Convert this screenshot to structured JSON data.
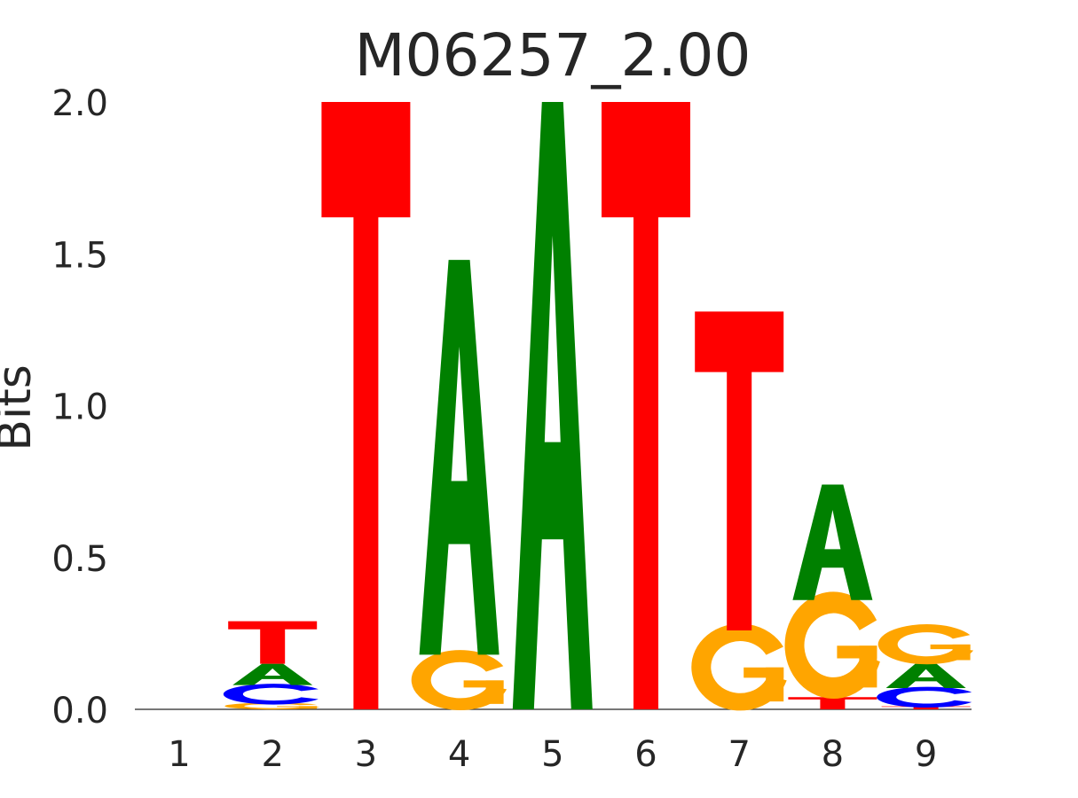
{
  "chart_data": {
    "type": "sequence-logo",
    "title": "M06257_2.00",
    "ylabel": "Bits",
    "xlabel": "",
    "ylim": [
      0,
      2
    ],
    "yticks": [
      "0.0",
      "0.5",
      "1.0",
      "1.5",
      "2.0"
    ],
    "positions": [
      "1",
      "2",
      "3",
      "4",
      "5",
      "6",
      "7",
      "8",
      "9"
    ],
    "colors": {
      "A": "#008000",
      "C": "#0000ff",
      "G": "#ffa500",
      "T": "#ff0000"
    },
    "stacks": [
      {
        "position": "1",
        "letters": []
      },
      {
        "position": "2",
        "letters": [
          {
            "base": "G",
            "bits": 0.02
          },
          {
            "base": "C",
            "bits": 0.06
          },
          {
            "base": "A",
            "bits": 0.07
          },
          {
            "base": "T",
            "bits": 0.14
          }
        ]
      },
      {
        "position": "3",
        "letters": [
          {
            "base": "T",
            "bits": 2.0
          }
        ]
      },
      {
        "position": "4",
        "letters": [
          {
            "base": "G",
            "bits": 0.18
          },
          {
            "base": "A",
            "bits": 1.3
          }
        ]
      },
      {
        "position": "5",
        "letters": [
          {
            "base": "A",
            "bits": 2.0
          }
        ]
      },
      {
        "position": "6",
        "letters": [
          {
            "base": "T",
            "bits": 2.0
          }
        ]
      },
      {
        "position": "7",
        "letters": [
          {
            "base": "G",
            "bits": 0.26
          },
          {
            "base": "T",
            "bits": 1.05
          }
        ]
      },
      {
        "position": "8",
        "letters": [
          {
            "base": "T",
            "bits": 0.04
          },
          {
            "base": "G",
            "bits": 0.32
          },
          {
            "base": "A",
            "bits": 0.38
          }
        ]
      },
      {
        "position": "9",
        "letters": [
          {
            "base": "T",
            "bits": 0.01
          },
          {
            "base": "C",
            "bits": 0.06
          },
          {
            "base": "A",
            "bits": 0.08
          },
          {
            "base": "G",
            "bits": 0.12
          }
        ]
      }
    ]
  }
}
